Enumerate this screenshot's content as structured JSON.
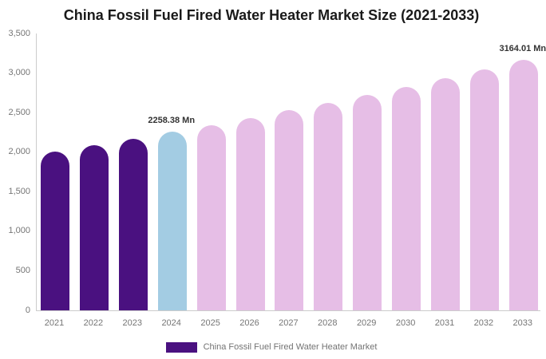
{
  "chart_data": {
    "type": "bar",
    "title": "China Fossil Fuel Fired Water Heater Market Size (2021-2033)",
    "unit": "Mn",
    "categories": [
      "2021",
      "2022",
      "2023",
      "2024",
      "2025",
      "2026",
      "2027",
      "2028",
      "2029",
      "2030",
      "2031",
      "2032",
      "2033"
    ],
    "values": [
      2010,
      2090,
      2172,
      2258.38,
      2345,
      2435,
      2527,
      2624,
      2724,
      2828,
      2936,
      3048,
      3164.01
    ],
    "data_labels": [
      "",
      "",
      "",
      "2258.38 Mn",
      "",
      "",
      "",
      "",
      "",
      "",
      "",
      "",
      "3164.01 Mn"
    ],
    "bar_roles": [
      "historical",
      "historical",
      "historical",
      "current",
      "forecast",
      "forecast",
      "forecast",
      "forecast",
      "forecast",
      "forecast",
      "forecast",
      "forecast",
      "forecast"
    ],
    "colors": {
      "historical": "#4A1180",
      "current": "#A3CCE3",
      "forecast": "#E6BEE6"
    },
    "ylim": [
      0,
      3500
    ],
    "yticks": [
      0,
      500,
      1000,
      1500,
      2000,
      2500,
      3000,
      3500
    ],
    "ytick_labels": [
      "0",
      "500",
      "1,000",
      "1,500",
      "2,000",
      "2,500",
      "3,000",
      "3,500"
    ],
    "grid": false,
    "legend": {
      "position": "bottom",
      "items": [
        {
          "label": "China Fossil Fuel Fired Water Heater Market",
          "color": "#4A1180"
        }
      ]
    },
    "axis_color": "#cccccc",
    "label_color": "#757575",
    "data_label_color": "#333333",
    "title_color": "#1a1a1a"
  }
}
